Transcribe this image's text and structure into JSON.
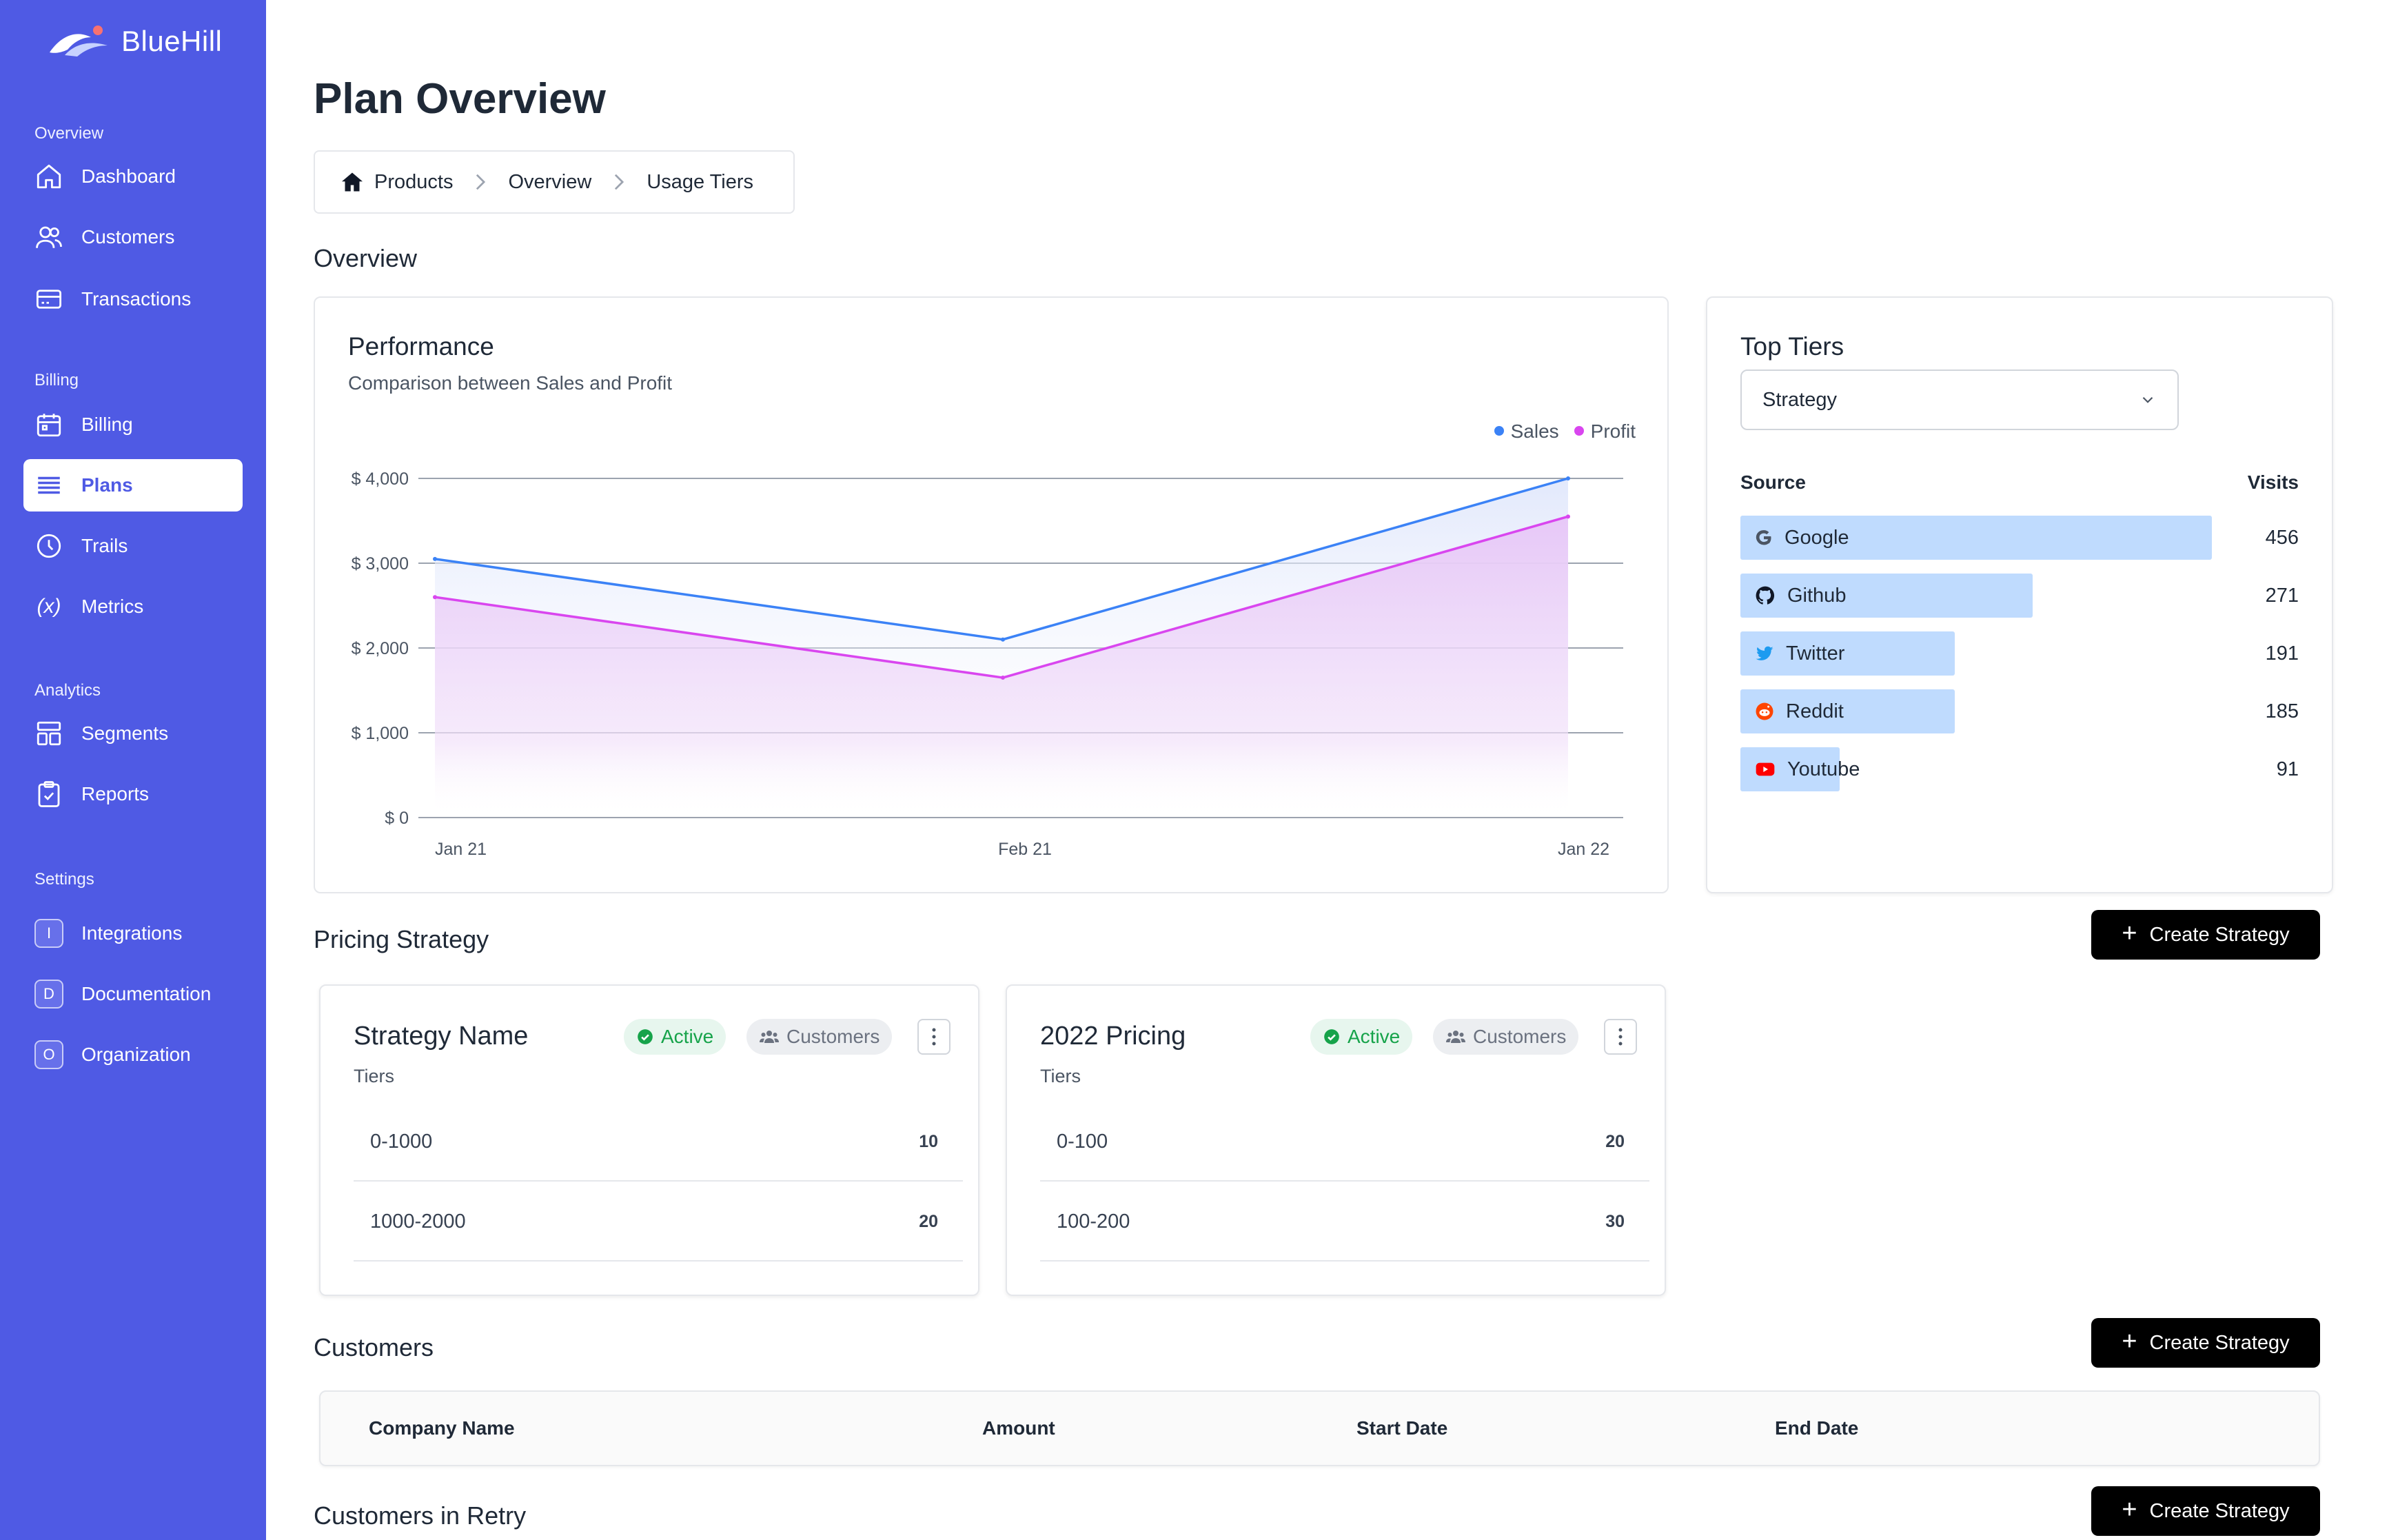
{
  "app": {
    "brand": "BlueHill"
  },
  "sidebar": {
    "sections": [
      {
        "label": "Overview"
      },
      {
        "label": "Billing"
      },
      {
        "label": "Analytics"
      },
      {
        "label": "Settings"
      }
    ],
    "items": [
      {
        "label": "Dashboard",
        "icon": "home-icon"
      },
      {
        "label": "Customers",
        "icon": "users-icon"
      },
      {
        "label": "Transactions",
        "icon": "card-icon"
      },
      {
        "label": "Billing",
        "icon": "calendar-icon"
      },
      {
        "label": "Plans",
        "icon": "list-icon",
        "active": true
      },
      {
        "label": "Trails",
        "icon": "clock-icon"
      },
      {
        "label": "Metrics",
        "icon": "variable-icon",
        "glyph": "(x)"
      },
      {
        "label": "Segments",
        "icon": "layout-icon"
      },
      {
        "label": "Reports",
        "icon": "clipboard-icon"
      },
      {
        "label": "Integrations",
        "badge": "I"
      },
      {
        "label": "Documentation",
        "badge": "D"
      },
      {
        "label": "Organization",
        "badge": "O"
      }
    ]
  },
  "header": {
    "title": "Plan Overview"
  },
  "breadcrumb": {
    "items": [
      "Products",
      "Overview",
      "Usage Tiers"
    ]
  },
  "overview": {
    "title": "Overview"
  },
  "performance": {
    "title": "Performance",
    "subtitle": "Comparison between Sales and Profit",
    "legend": [
      "Sales",
      "Profit"
    ]
  },
  "chart_data": {
    "type": "area",
    "title": "Performance",
    "subtitle": "Comparison between Sales and Profit",
    "categories": [
      "Jan 21",
      "Feb 21",
      "Jan 22"
    ],
    "series": [
      {
        "name": "Sales",
        "values": [
          3050,
          2100,
          4000
        ],
        "color": "#3b82f6"
      },
      {
        "name": "Profit",
        "values": [
          2600,
          1650,
          3550
        ],
        "color": "#d946ef"
      }
    ],
    "yticks": [
      "$ 4,000",
      "$ 3,000",
      "$ 2,000",
      "$ 1,000",
      "$ 0"
    ],
    "ylim": [
      0,
      4000
    ],
    "grid": true,
    "legend_position": "top-right"
  },
  "top_tiers": {
    "title": "Top Tiers",
    "select_value": "Strategy",
    "source_header": "Source",
    "visits_header": "Visits",
    "rows": [
      {
        "name": "Google",
        "visits": "456",
        "icon": "google-icon",
        "fraction": 1.0
      },
      {
        "name": "Github",
        "visits": "271",
        "icon": "github-icon",
        "fraction": 0.62
      },
      {
        "name": "Twitter",
        "visits": "191",
        "icon": "twitter-icon",
        "fraction": 0.455
      },
      {
        "name": "Reddit",
        "visits": "185",
        "icon": "reddit-icon",
        "fraction": 0.455
      },
      {
        "name": "Youtube",
        "visits": "91",
        "icon": "youtube-icon",
        "fraction": 0.21
      }
    ]
  },
  "pricing": {
    "title": "Pricing Strategy",
    "create_label": "Create Strategy",
    "cards": [
      {
        "title": "Strategy Name",
        "status": "Active",
        "audience": "Customers",
        "tiers_label": "Tiers",
        "tiers": [
          {
            "range": "0-1000",
            "value": "10"
          },
          {
            "range": "1000-2000",
            "value": "20"
          }
        ]
      },
      {
        "title": "2022 Pricing",
        "status": "Active",
        "audience": "Customers",
        "tiers_label": "Tiers",
        "tiers": [
          {
            "range": "0-100",
            "value": "20"
          },
          {
            "range": "100-200",
            "value": "30"
          }
        ]
      }
    ]
  },
  "customers": {
    "title": "Customers",
    "create_label": "Create Strategy",
    "columns": [
      "Company Name",
      "Amount",
      "Start Date",
      "End Date"
    ]
  },
  "retry": {
    "title": "Customers in Retry",
    "create_label": "Create Strategy"
  }
}
